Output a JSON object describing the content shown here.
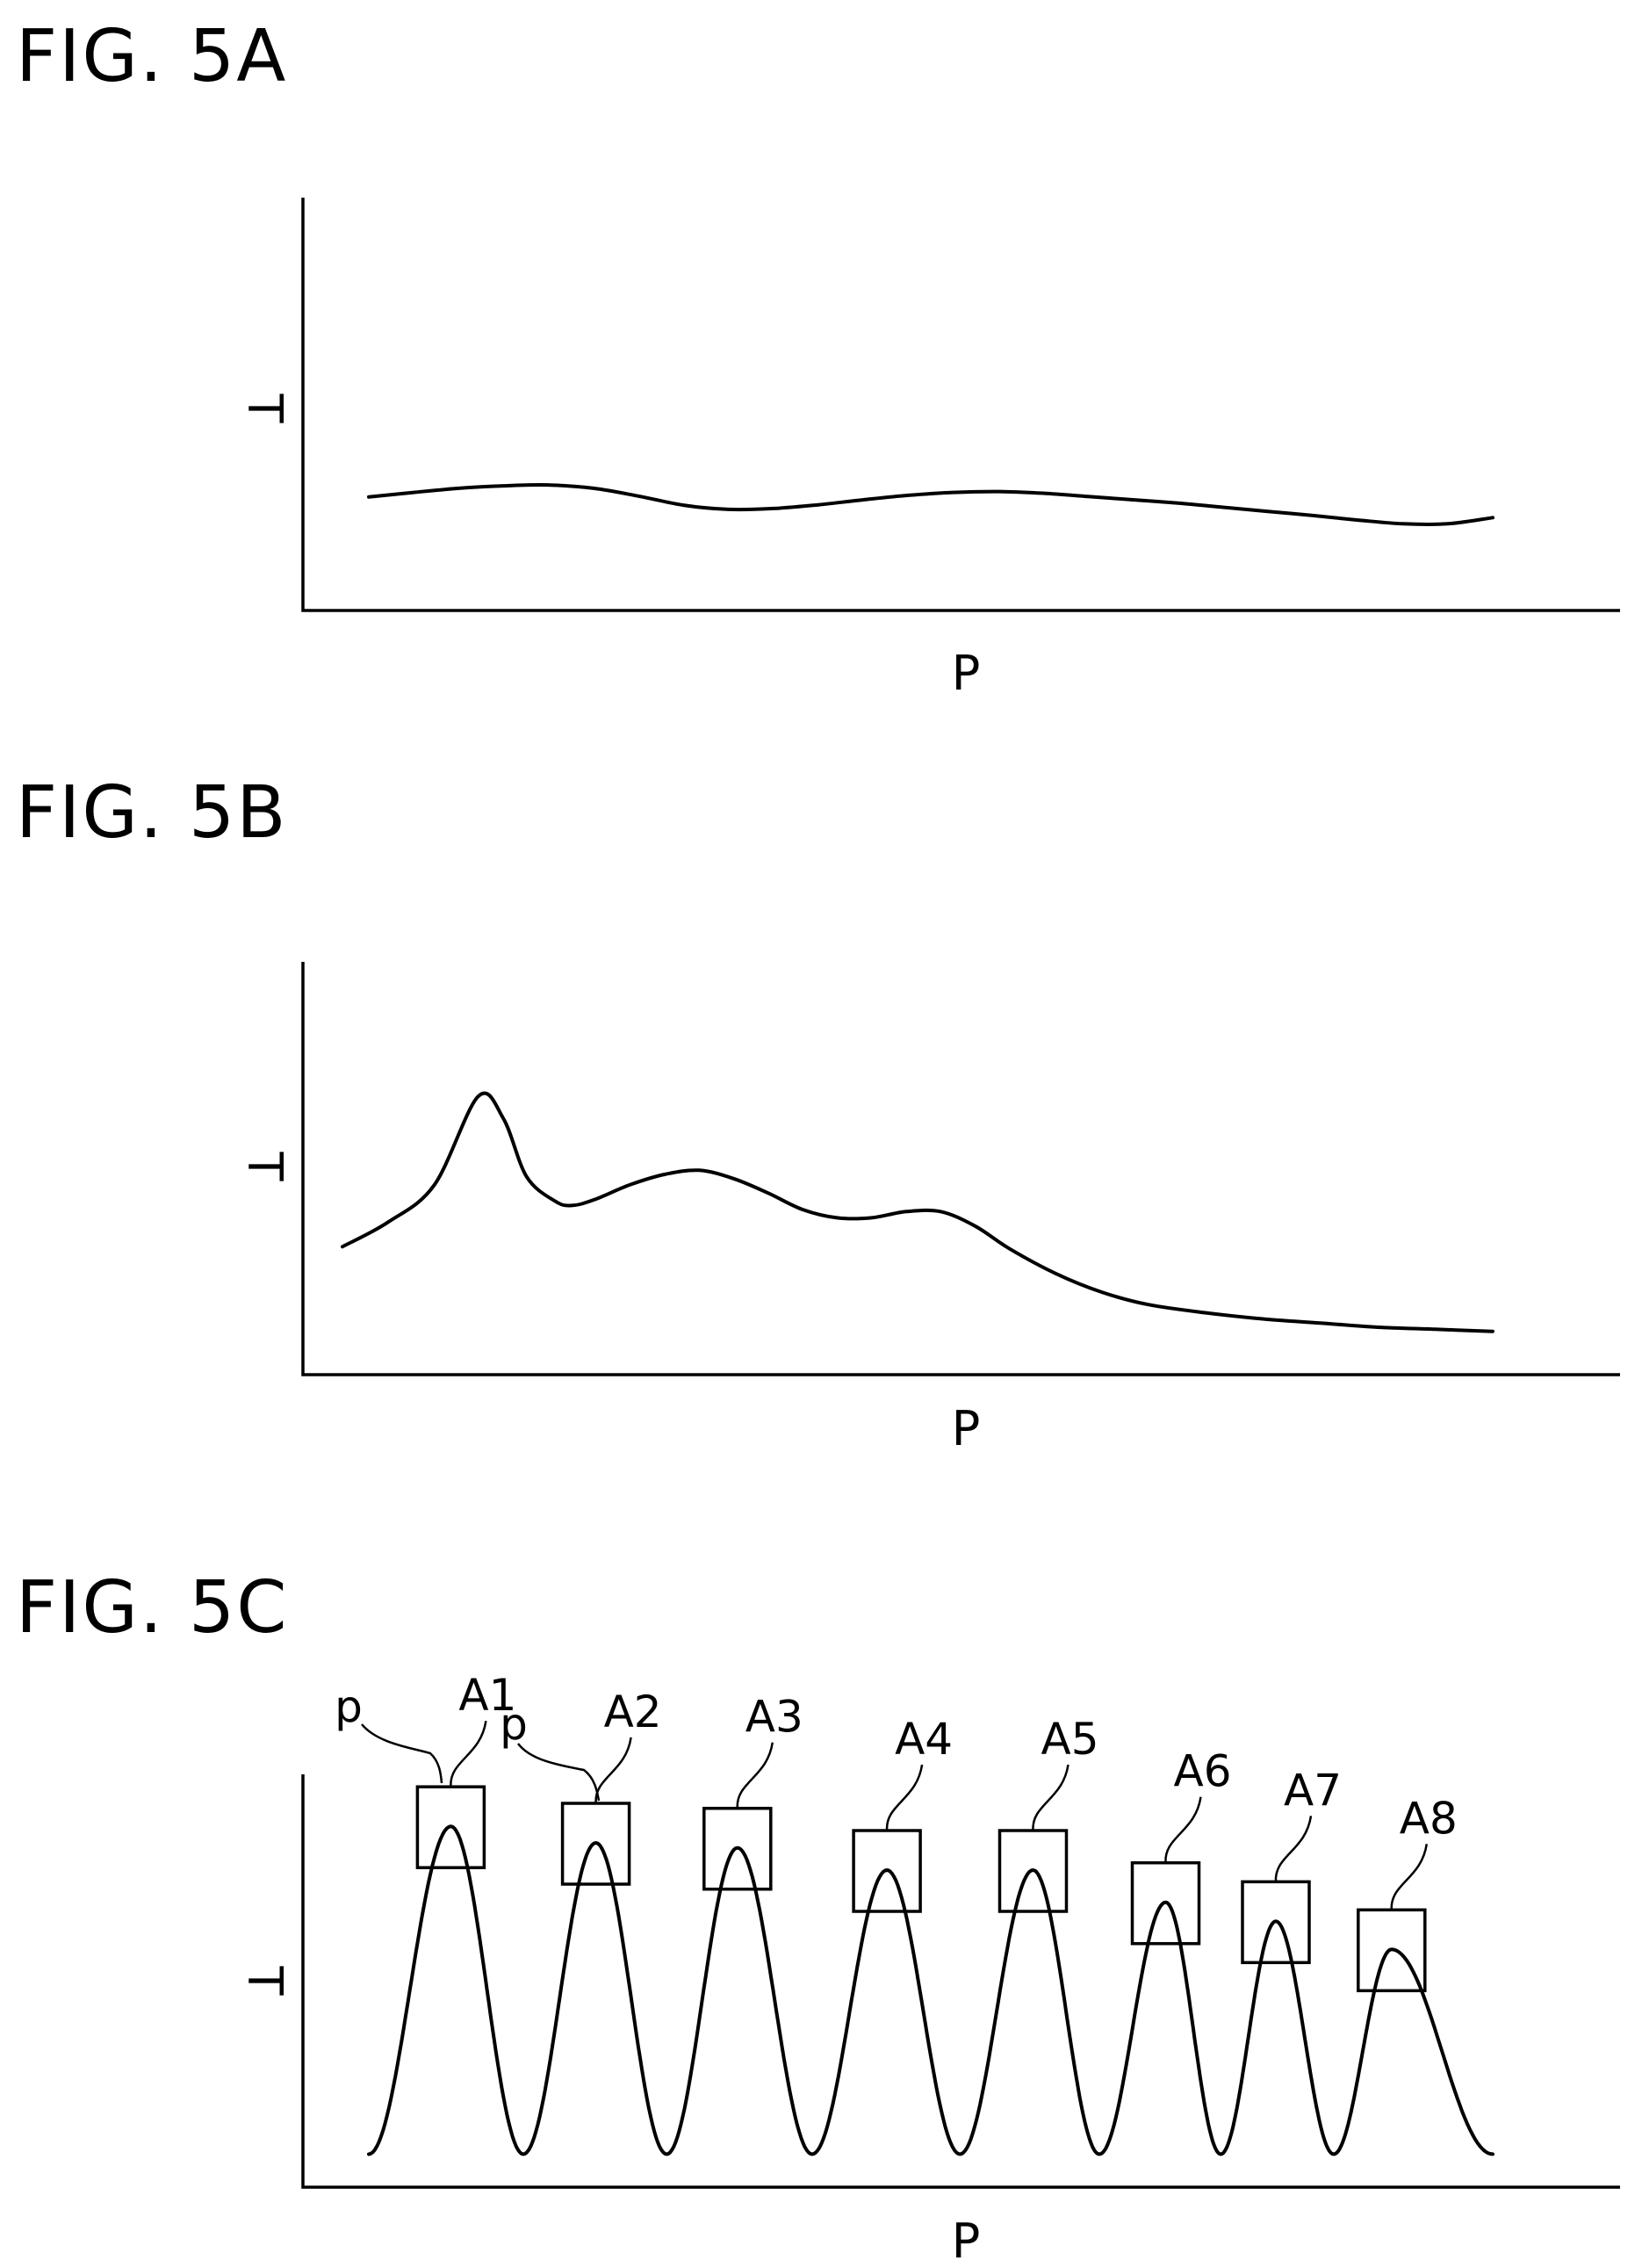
{
  "chart_data": [
    {
      "type": "line",
      "title": "FIG. 5A",
      "xlabel": "P",
      "ylabel": "T",
      "ylim": [
        0,
        100
      ],
      "x": [
        0,
        4,
        8,
        12,
        16,
        20,
        24,
        28,
        32,
        36,
        40,
        44,
        48,
        52,
        56,
        60,
        64,
        68,
        72,
        76,
        80,
        84,
        88,
        92,
        96,
        100
      ],
      "series": [
        {
          "values": [
            27.5,
            28.6,
            29.6,
            30.2,
            30.4,
            29.6,
            27.7,
            25.5,
            24.5,
            24.7,
            25.6,
            26.8,
            27.9,
            28.6,
            28.8,
            28.4,
            27.6,
            26.8,
            26.0,
            25.0,
            24.0,
            23.0,
            21.9,
            21.0,
            21.0,
            22.5
          ]
        }
      ]
    },
    {
      "type": "line",
      "title": "FIG. 5B",
      "xlabel": "P",
      "ylabel": "T",
      "ylim": [
        0,
        100
      ],
      "x": [
        0,
        4,
        8,
        11.8,
        14,
        16,
        18.5,
        20,
        22,
        25,
        28,
        31,
        34,
        37,
        40,
        43,
        46,
        49,
        52,
        55,
        58,
        62,
        66,
        70,
        75,
        80,
        85,
        90,
        95,
        100
      ],
      "series": [
        {
          "values": [
            31,
            37,
            46,
            67.4,
            62,
            48,
            42,
            41,
            42.5,
            46,
            48.5,
            49.5,
            47.5,
            44,
            40,
            38,
            38,
            39.5,
            39.5,
            36,
            30.5,
            24.5,
            20,
            17,
            15,
            13.5,
            12.5,
            11.5,
            11,
            10.5
          ]
        }
      ]
    },
    {
      "type": "line",
      "title": "FIG. 5C",
      "xlabel": "P",
      "ylabel": "T",
      "ylim": [
        0,
        100
      ],
      "peaks": [
        {
          "label": "A1",
          "x": 7.3,
          "y": 87.4
        },
        {
          "label": "A2",
          "x": 20.2,
          "y": 83.4
        },
        {
          "label": "A3",
          "x": 32.8,
          "y": 82.2
        },
        {
          "label": "A4",
          "x": 46.1,
          "y": 76.8
        },
        {
          "label": "A5",
          "x": 59.1,
          "y": 76.8
        },
        {
          "label": "A6",
          "x": 70.9,
          "y": 69.0
        },
        {
          "label": "A7",
          "x": 80.7,
          "y": 64.4
        },
        {
          "label": "A8",
          "x": 91.0,
          "y": 57.6
        }
      ],
      "baseline": 8.0,
      "markers": [
        "p",
        "p"
      ]
    }
  ]
}
